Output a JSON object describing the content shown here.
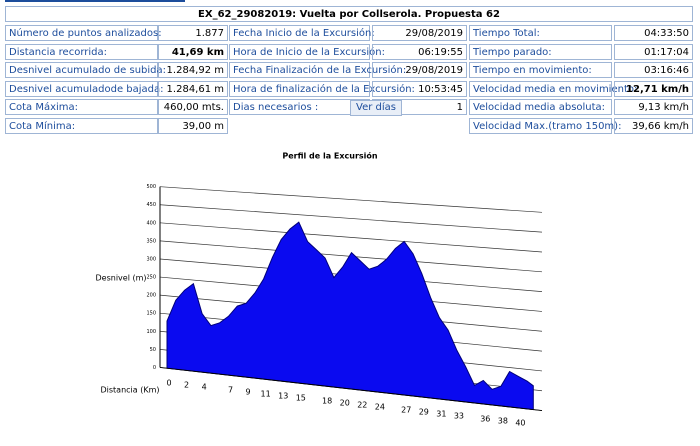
{
  "summary": {
    "title": "EX_62_29082019: Vuelta por Collserola. Propuesta 62",
    "left": [
      {
        "label": "Número de puntos analizados:",
        "value": "1.877"
      },
      {
        "label": "Distancia recorrida:",
        "value": "41,69 km"
      },
      {
        "label": "Desnivel acumulado de subida:",
        "value": "1.284,92 m"
      },
      {
        "label": "Desnivel acumuladode bajada:",
        "value": "1.284,61 m"
      },
      {
        "label": "Cota Máxima:",
        "value": "460,00 mts."
      },
      {
        "label": "Cota Mínima:",
        "value": "39,00 m"
      }
    ],
    "middle": [
      {
        "label": "Fecha Inicio  de la Excursión:",
        "value": "29/08/2019"
      },
      {
        "label": "Hora de Inicio de la Excursión:",
        "value": "06:19:55"
      },
      {
        "label": "Fecha Finalización de la Excursión:",
        "value": "29/08/2019"
      },
      {
        "label": "Hora de finalización de la Excursión:",
        "value": "10:53:45"
      },
      {
        "label": "Dias necesarios :",
        "value": "1"
      }
    ],
    "button": "Ver días",
    "right": [
      {
        "label": "Tiempo Total:",
        "value": "04:33:50"
      },
      {
        "label": "Tiempo parado:",
        "value": "01:17:04"
      },
      {
        "label": "Tiempo en movimiento:",
        "value": "03:16:46"
      },
      {
        "label": "Velocidad media en movimiento:",
        "value": "12,71 km/h"
      },
      {
        "label": "Velocidad media absoluta:",
        "value": "9,13 km/h"
      },
      {
        "label": "Velocidad Max.(tramo 150m):",
        "value": "39,66 km/h"
      }
    ]
  },
  "chart_data": {
    "type": "area",
    "title": "Perfil de la Excursión",
    "y_label": "Desnivel (m)",
    "x_label": "Distancia (Km)",
    "color": "#0a0af0",
    "x": [
      0,
      1,
      2,
      3,
      4,
      5,
      6,
      7,
      8,
      9,
      10,
      11,
      12,
      13,
      14,
      15,
      16,
      17,
      18,
      19,
      20,
      21,
      22,
      23,
      24,
      25,
      26,
      27,
      28,
      29,
      30,
      31,
      32,
      33,
      34,
      35,
      36,
      37,
      38,
      39,
      40,
      41,
      41.69
    ],
    "values": [
      130,
      190,
      220,
      240,
      160,
      130,
      140,
      160,
      190,
      200,
      230,
      270,
      330,
      380,
      410,
      430,
      380,
      360,
      340,
      290,
      320,
      360,
      340,
      320,
      330,
      350,
      380,
      400,
      370,
      320,
      260,
      210,
      180,
      130,
      90,
      45,
      60,
      40,
      50,
      90,
      80,
      70,
      60
    ],
    "xlim": [
      0,
      42
    ],
    "xticks": [
      0,
      2,
      4,
      7,
      9,
      11,
      13,
      15,
      18,
      20,
      22,
      24,
      27,
      29,
      31,
      33,
      36,
      38,
      40
    ],
    "ylim": [
      0,
      500
    ],
    "yticks": [
      0,
      50,
      100,
      150,
      200,
      250,
      300,
      350,
      400,
      450,
      500
    ],
    "grid": true
  }
}
